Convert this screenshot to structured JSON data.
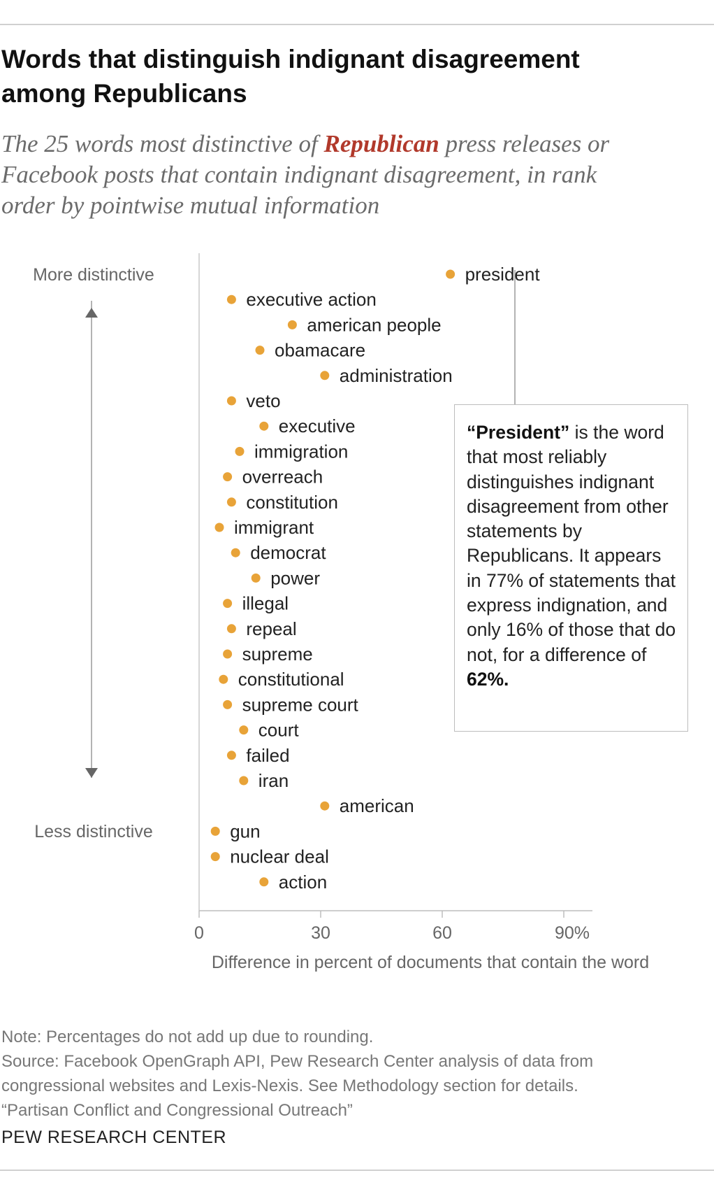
{
  "header": {
    "title_line1": "Words that distinguish indignant disagreement",
    "title_line2": "among Republicans",
    "subtitle_pre": "The 25 words most distinctive of ",
    "subtitle_highlight": "Republican",
    "subtitle_post": " press releases or",
    "subtitle_line2": "Facebook posts that contain indignant disagreement, in rank",
    "subtitle_line3": "order by pointwise mutual information"
  },
  "callout": {
    "bold_word": "“President”",
    "text_1": " is the word that most reliably distinguishes indignant disagreement from other statements by Republicans. It appears in 77% of statements that express indignation, and only 16% of those that do not, for a difference of ",
    "bold_value": "62%.",
    "text_2": ""
  },
  "notes": {
    "note": "Note: Percentages do not add up due to rounding.",
    "source_1": "Source: Facebook OpenGraph API, Pew Research Center analysis of data from",
    "source_2": "congressional websites and Lexis-Nexis. See Methodology section for details.",
    "source_3": "“Partisan Conflict and Congressional Outreach”"
  },
  "footer": {
    "org": "PEW RESEARCH CENTER"
  },
  "chart_data": {
    "type": "scatter",
    "xlabel": "Difference in percent of documents that contain the word",
    "xlim": [
      0,
      98
    ],
    "xticks": [
      0,
      30,
      60,
      90
    ],
    "xtick_labels": [
      "0",
      "30",
      "60",
      "90%"
    ],
    "y_top_label": "More distinctive",
    "y_bottom_label": "Less distinctive",
    "point_color": "#e8a338",
    "points": [
      {
        "word": "president",
        "value": 62
      },
      {
        "word": "executive action",
        "value": 8
      },
      {
        "word": "american people",
        "value": 23
      },
      {
        "word": "obamacare",
        "value": 15
      },
      {
        "word": "administration",
        "value": 31
      },
      {
        "word": "veto",
        "value": 8
      },
      {
        "word": "executive",
        "value": 16
      },
      {
        "word": "immigration",
        "value": 10
      },
      {
        "word": "overreach",
        "value": 7
      },
      {
        "word": "constitution",
        "value": 8
      },
      {
        "word": "immigrant",
        "value": 5
      },
      {
        "word": "democrat",
        "value": 9
      },
      {
        "word": "power",
        "value": 14
      },
      {
        "word": "illegal",
        "value": 7
      },
      {
        "word": "repeal",
        "value": 8
      },
      {
        "word": "supreme",
        "value": 7
      },
      {
        "word": "constitutional",
        "value": 6
      },
      {
        "word": "supreme court",
        "value": 7
      },
      {
        "word": "court",
        "value": 11
      },
      {
        "word": "failed",
        "value": 8
      },
      {
        "word": "iran",
        "value": 11
      },
      {
        "word": "american",
        "value": 31
      },
      {
        "word": "gun",
        "value": 4
      },
      {
        "word": "nuclear deal",
        "value": 4
      },
      {
        "word": "action",
        "value": 16
      }
    ]
  }
}
